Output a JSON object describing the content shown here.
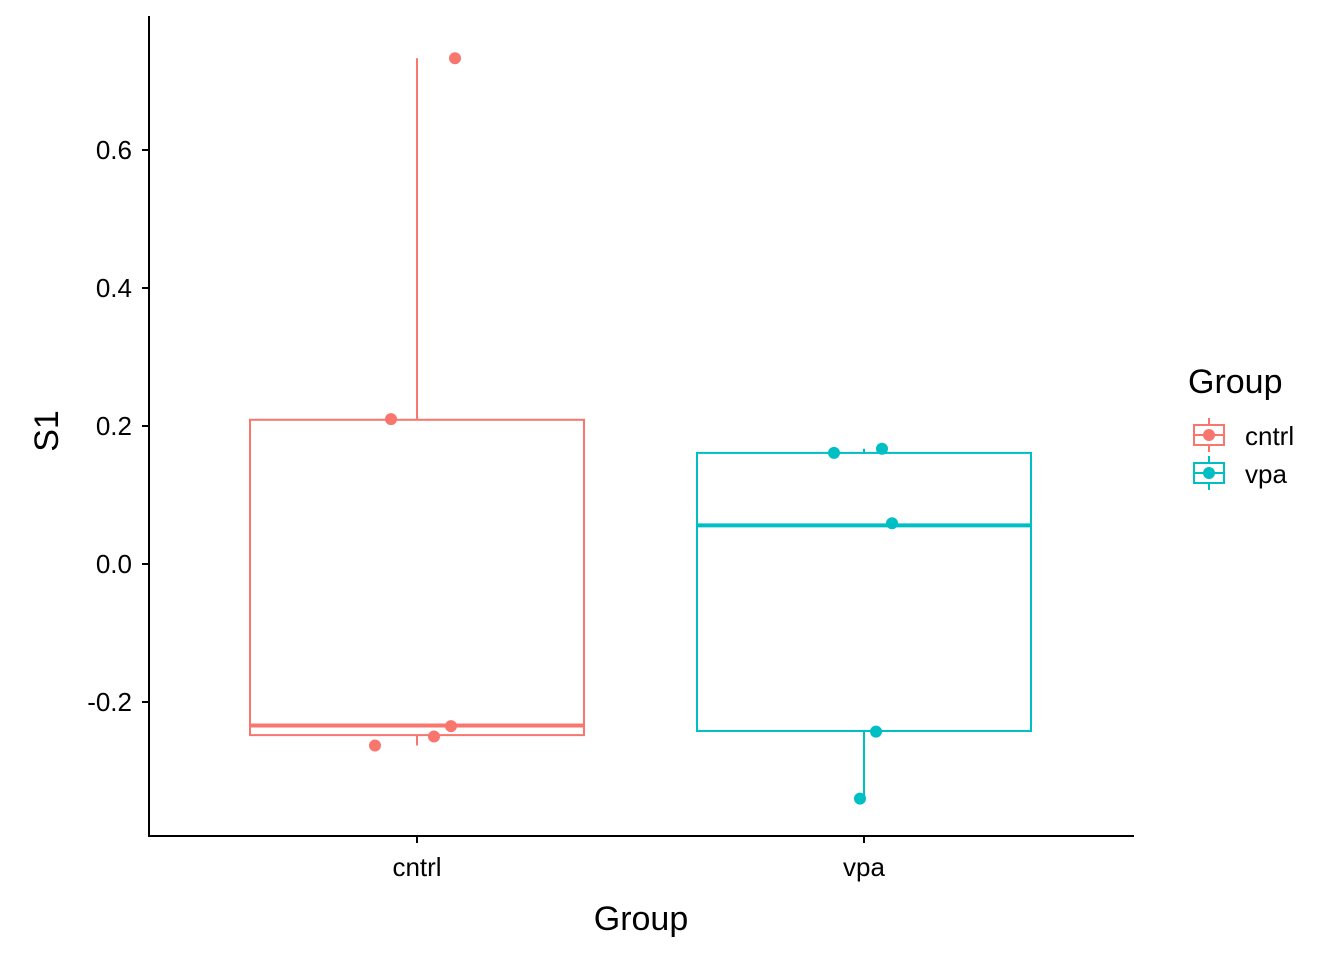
{
  "chart_data": {
    "type": "box",
    "title": "",
    "xlabel": "Group",
    "ylabel": "S1",
    "categories": [
      "cntrl",
      "vpa"
    ],
    "ylim": [
      -0.39,
      0.79
    ],
    "y_ticks": [
      -0.2,
      0.0,
      0.2,
      0.4,
      0.6
    ],
    "y_tick_labels": [
      "-0.2",
      "0.0",
      "0.2",
      "0.4",
      "0.6"
    ],
    "grid": false,
    "legend": {
      "title": "Group",
      "position": "right",
      "entries": [
        "cntrl",
        "vpa"
      ]
    },
    "series": [
      {
        "name": "cntrl",
        "color": "#F8766D",
        "box": {
          "min": -0.263,
          "q1": -0.248,
          "median": -0.234,
          "q3": 0.209,
          "max": 0.733
        },
        "points": [
          {
            "x": "cntrl",
            "y": 0.733
          },
          {
            "x": "cntrl",
            "y": 0.21
          },
          {
            "x": "cntrl",
            "y": -0.235
          },
          {
            "x": "cntrl",
            "y": -0.25
          },
          {
            "x": "cntrl",
            "y": -0.263
          }
        ]
      },
      {
        "name": "vpa",
        "color": "#00BFC4",
        "box": {
          "min": -0.34,
          "q1": -0.242,
          "median": 0.056,
          "q3": 0.161,
          "max": 0.167
        },
        "points": [
          {
            "x": "vpa",
            "y": 0.167
          },
          {
            "x": "vpa",
            "y": 0.161
          },
          {
            "x": "vpa",
            "y": 0.059
          },
          {
            "x": "vpa",
            "y": -0.243
          },
          {
            "x": "vpa",
            "y": -0.34
          }
        ]
      }
    ]
  }
}
